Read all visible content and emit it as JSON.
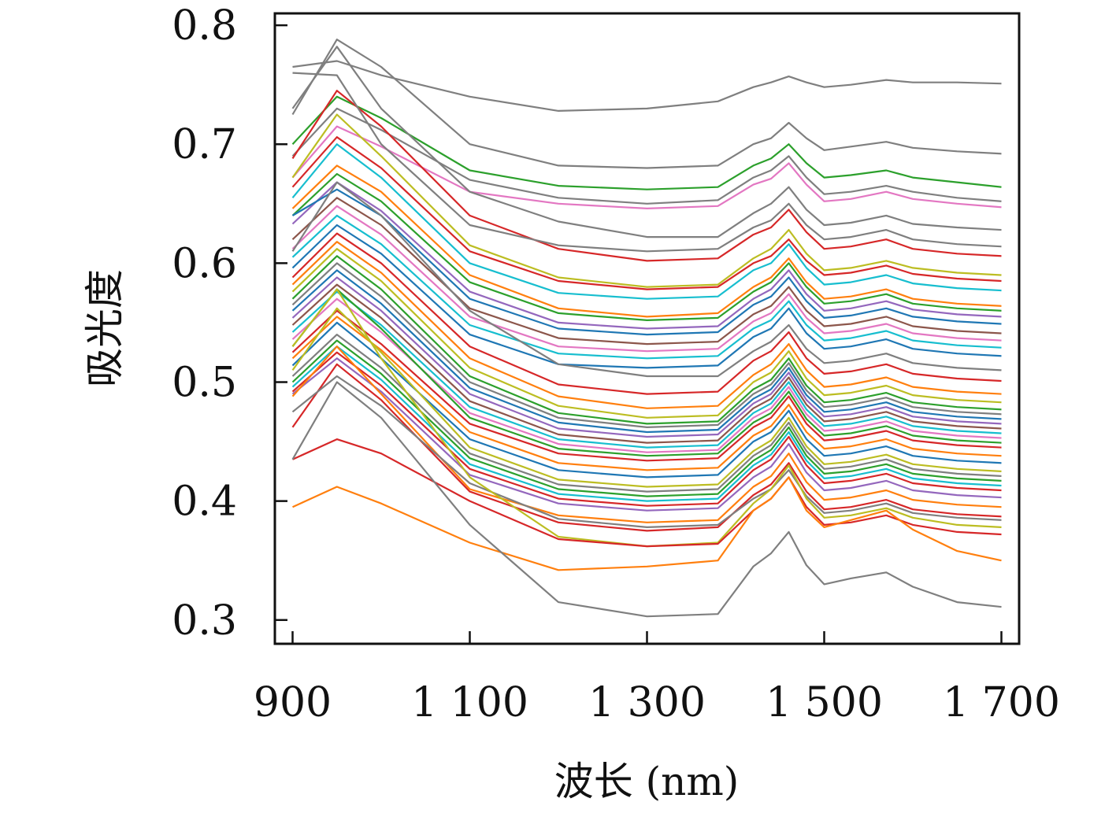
{
  "chart_data": {
    "type": "line",
    "title": "",
    "xlabel": "波长 (nm)",
    "ylabel": "吸光度",
    "xlim": [
      880,
      1720
    ],
    "ylim": [
      0.28,
      0.81
    ],
    "x_ticks": [
      900,
      1100,
      1300,
      1500,
      1700
    ],
    "x_tick_labels": [
      "900",
      "1 100",
      "1 300",
      "1 500",
      "1 700"
    ],
    "y_ticks": [
      0.3,
      0.4,
      0.5,
      0.6,
      0.7,
      0.8
    ],
    "y_tick_labels": [
      "0.3",
      "0.4",
      "0.5",
      "0.6",
      "0.7",
      "0.8"
    ],
    "grid": false,
    "legend": "none",
    "x": [
      900,
      950,
      1000,
      1100,
      1200,
      1300,
      1380,
      1420,
      1440,
      1460,
      1480,
      1500,
      1530,
      1570,
      1600,
      1650,
      1700
    ],
    "series": [
      {
        "color": "#7f7f7f",
        "values": [
          0.765,
          0.77,
          0.758,
          0.74,
          0.728,
          0.73,
          0.736,
          0.748,
          0.752,
          0.757,
          0.752,
          0.748,
          0.75,
          0.754,
          0.752,
          0.752,
          0.751
        ]
      },
      {
        "color": "#7f7f7f",
        "values": [
          0.725,
          0.788,
          0.765,
          0.7,
          0.682,
          0.68,
          0.682,
          0.7,
          0.705,
          0.718,
          0.705,
          0.695,
          0.698,
          0.702,
          0.697,
          0.694,
          0.692
        ]
      },
      {
        "color": "#2ca02c",
        "values": [
          0.7,
          0.74,
          0.722,
          0.678,
          0.665,
          0.662,
          0.664,
          0.682,
          0.688,
          0.7,
          0.684,
          0.672,
          0.674,
          0.678,
          0.672,
          0.668,
          0.664
        ]
      },
      {
        "color": "#7f7f7f",
        "values": [
          0.69,
          0.73,
          0.712,
          0.67,
          0.655,
          0.65,
          0.653,
          0.672,
          0.678,
          0.69,
          0.672,
          0.658,
          0.66,
          0.665,
          0.66,
          0.655,
          0.652
        ]
      },
      {
        "color": "#e377c2",
        "values": [
          0.672,
          0.715,
          0.698,
          0.66,
          0.65,
          0.646,
          0.648,
          0.666,
          0.671,
          0.684,
          0.666,
          0.652,
          0.654,
          0.66,
          0.654,
          0.65,
          0.647
        ]
      },
      {
        "color": "#7f7f7f",
        "values": [
          0.73,
          0.782,
          0.73,
          0.66,
          0.635,
          0.622,
          0.622,
          0.642,
          0.65,
          0.664,
          0.645,
          0.632,
          0.634,
          0.64,
          0.633,
          0.63,
          0.628
        ]
      },
      {
        "color": "#d62728",
        "values": [
          0.688,
          0.745,
          0.715,
          0.64,
          0.612,
          0.602,
          0.604,
          0.624,
          0.63,
          0.645,
          0.626,
          0.612,
          0.614,
          0.62,
          0.612,
          0.608,
          0.606
        ]
      },
      {
        "color": "#7f7f7f",
        "values": [
          0.76,
          0.758,
          0.7,
          0.632,
          0.615,
          0.61,
          0.612,
          0.63,
          0.636,
          0.65,
          0.632,
          0.62,
          0.622,
          0.628,
          0.62,
          0.616,
          0.614
        ]
      },
      {
        "color": "#bcbd22",
        "values": [
          0.672,
          0.725,
          0.69,
          0.615,
          0.588,
          0.58,
          0.582,
          0.604,
          0.612,
          0.628,
          0.608,
          0.594,
          0.596,
          0.602,
          0.596,
          0.592,
          0.59
        ]
      },
      {
        "color": "#d62728",
        "values": [
          0.664,
          0.706,
          0.68,
          0.61,
          0.585,
          0.578,
          0.58,
          0.6,
          0.606,
          0.62,
          0.602,
          0.59,
          0.592,
          0.598,
          0.591,
          0.587,
          0.585
        ]
      },
      {
        "color": "#17becf",
        "values": [
          0.655,
          0.7,
          0.672,
          0.6,
          0.575,
          0.57,
          0.572,
          0.594,
          0.6,
          0.616,
          0.596,
          0.582,
          0.584,
          0.59,
          0.583,
          0.579,
          0.577
        ]
      },
      {
        "color": "#ff7f0e",
        "values": [
          0.646,
          0.682,
          0.66,
          0.59,
          0.562,
          0.555,
          0.558,
          0.58,
          0.588,
          0.604,
          0.584,
          0.57,
          0.572,
          0.578,
          0.57,
          0.566,
          0.564
        ]
      },
      {
        "color": "#2ca02c",
        "values": [
          0.64,
          0.675,
          0.652,
          0.584,
          0.558,
          0.552,
          0.554,
          0.576,
          0.584,
          0.6,
          0.58,
          0.566,
          0.568,
          0.574,
          0.566,
          0.562,
          0.56
        ]
      },
      {
        "color": "#9467bd",
        "values": [
          0.633,
          0.668,
          0.644,
          0.576,
          0.55,
          0.545,
          0.547,
          0.57,
          0.578,
          0.594,
          0.574,
          0.56,
          0.562,
          0.568,
          0.561,
          0.557,
          0.555
        ]
      },
      {
        "color": "#1f77b4",
        "values": [
          0.64,
          0.662,
          0.64,
          0.57,
          0.545,
          0.54,
          0.542,
          0.565,
          0.572,
          0.588,
          0.568,
          0.554,
          0.556,
          0.562,
          0.555,
          0.551,
          0.549
        ]
      },
      {
        "color": "#8c564b",
        "values": [
          0.62,
          0.655,
          0.632,
          0.562,
          0.537,
          0.532,
          0.534,
          0.557,
          0.564,
          0.58,
          0.56,
          0.547,
          0.549,
          0.555,
          0.547,
          0.543,
          0.541
        ]
      },
      {
        "color": "#e377c2",
        "values": [
          0.612,
          0.648,
          0.624,
          0.555,
          0.53,
          0.526,
          0.528,
          0.551,
          0.558,
          0.574,
          0.554,
          0.541,
          0.543,
          0.549,
          0.541,
          0.537,
          0.535
        ]
      },
      {
        "color": "#17becf",
        "values": [
          0.605,
          0.64,
          0.616,
          0.548,
          0.524,
          0.52,
          0.522,
          0.545,
          0.552,
          0.568,
          0.548,
          0.535,
          0.537,
          0.543,
          0.535,
          0.531,
          0.529
        ]
      },
      {
        "color": "#1f77b4",
        "values": [
          0.596,
          0.632,
          0.608,
          0.54,
          0.515,
          0.512,
          0.514,
          0.538,
          0.545,
          0.562,
          0.541,
          0.528,
          0.53,
          0.536,
          0.528,
          0.524,
          0.522
        ]
      },
      {
        "color": "#7f7f7f",
        "values": [
          0.61,
          0.668,
          0.64,
          0.56,
          0.515,
          0.505,
          0.505,
          0.526,
          0.534,
          0.548,
          0.528,
          0.516,
          0.518,
          0.524,
          0.516,
          0.512,
          0.51
        ]
      },
      {
        "color": "#d62728",
        "values": [
          0.588,
          0.625,
          0.6,
          0.53,
          0.498,
          0.49,
          0.492,
          0.518,
          0.526,
          0.542,
          0.52,
          0.507,
          0.509,
          0.515,
          0.507,
          0.503,
          0.501
        ]
      },
      {
        "color": "#ff7f0e",
        "values": [
          0.582,
          0.618,
          0.592,
          0.52,
          0.488,
          0.478,
          0.48,
          0.506,
          0.515,
          0.532,
          0.51,
          0.496,
          0.498,
          0.504,
          0.496,
          0.492,
          0.49
        ]
      },
      {
        "color": "#bcbd22",
        "values": [
          0.576,
          0.612,
          0.585,
          0.512,
          0.48,
          0.47,
          0.472,
          0.5,
          0.508,
          0.526,
          0.503,
          0.489,
          0.491,
          0.497,
          0.489,
          0.485,
          0.483
        ]
      },
      {
        "color": "#2ca02c",
        "values": [
          0.57,
          0.606,
          0.578,
          0.505,
          0.474,
          0.465,
          0.467,
          0.494,
          0.502,
          0.52,
          0.497,
          0.483,
          0.485,
          0.491,
          0.483,
          0.479,
          0.477
        ]
      },
      {
        "color": "#7f7f7f",
        "values": [
          0.565,
          0.6,
          0.572,
          0.5,
          0.47,
          0.462,
          0.464,
          0.49,
          0.498,
          0.516,
          0.493,
          0.479,
          0.481,
          0.487,
          0.479,
          0.475,
          0.473
        ]
      },
      {
        "color": "#1f77b4",
        "values": [
          0.56,
          0.594,
          0.566,
          0.495,
          0.466,
          0.458,
          0.46,
          0.486,
          0.494,
          0.512,
          0.489,
          0.475,
          0.477,
          0.483,
          0.475,
          0.471,
          0.469
        ]
      },
      {
        "color": "#9467bd",
        "values": [
          0.554,
          0.588,
          0.56,
          0.49,
          0.461,
          0.454,
          0.456,
          0.482,
          0.49,
          0.508,
          0.485,
          0.471,
          0.473,
          0.479,
          0.471,
          0.467,
          0.465
        ]
      },
      {
        "color": "#8c564b",
        "values": [
          0.548,
          0.582,
          0.554,
          0.484,
          0.456,
          0.449,
          0.451,
          0.478,
          0.486,
          0.504,
          0.481,
          0.467,
          0.469,
          0.475,
          0.467,
          0.463,
          0.461
        ]
      },
      {
        "color": "#17becf",
        "values": [
          0.542,
          0.576,
          0.548,
          0.479,
          0.452,
          0.445,
          0.447,
          0.474,
          0.482,
          0.5,
          0.477,
          0.463,
          0.465,
          0.471,
          0.463,
          0.459,
          0.457
        ]
      },
      {
        "color": "#e377c2",
        "values": [
          0.536,
          0.57,
          0.542,
          0.474,
          0.448,
          0.441,
          0.443,
          0.47,
          0.478,
          0.496,
          0.473,
          0.459,
          0.461,
          0.467,
          0.459,
          0.455,
          0.453
        ]
      },
      {
        "color": "#2ca02c",
        "values": [
          0.53,
          0.578,
          0.545,
          0.47,
          0.444,
          0.438,
          0.44,
          0.466,
          0.474,
          0.492,
          0.469,
          0.455,
          0.457,
          0.463,
          0.455,
          0.451,
          0.449
        ]
      },
      {
        "color": "#d62728",
        "values": [
          0.525,
          0.56,
          0.532,
          0.465,
          0.44,
          0.434,
          0.436,
          0.462,
          0.47,
          0.488,
          0.465,
          0.451,
          0.453,
          0.459,
          0.451,
          0.447,
          0.445
        ]
      },
      {
        "color": "#ff7f0e",
        "values": [
          0.52,
          0.555,
          0.527,
          0.458,
          0.432,
          0.426,
          0.428,
          0.455,
          0.463,
          0.481,
          0.458,
          0.444,
          0.446,
          0.452,
          0.444,
          0.44,
          0.438
        ]
      },
      {
        "color": "#1f77b4",
        "values": [
          0.514,
          0.55,
          0.52,
          0.452,
          0.426,
          0.42,
          0.422,
          0.45,
          0.458,
          0.476,
          0.452,
          0.438,
          0.44,
          0.446,
          0.438,
          0.434,
          0.432
        ]
      },
      {
        "color": "#bcbd22",
        "values": [
          0.51,
          0.562,
          0.525,
          0.445,
          0.418,
          0.412,
          0.414,
          0.442,
          0.451,
          0.47,
          0.446,
          0.431,
          0.433,
          0.439,
          0.431,
          0.427,
          0.425
        ]
      },
      {
        "color": "#7f7f7f",
        "values": [
          0.505,
          0.54,
          0.512,
          0.44,
          0.414,
          0.408,
          0.41,
          0.438,
          0.447,
          0.466,
          0.442,
          0.427,
          0.429,
          0.435,
          0.427,
          0.423,
          0.421
        ]
      },
      {
        "color": "#2ca02c",
        "values": [
          0.5,
          0.535,
          0.507,
          0.436,
          0.41,
          0.404,
          0.406,
          0.434,
          0.443,
          0.462,
          0.438,
          0.423,
          0.425,
          0.431,
          0.423,
          0.419,
          0.417
        ]
      },
      {
        "color": "#17becf",
        "values": [
          0.496,
          0.53,
          0.502,
          0.431,
          0.406,
          0.4,
          0.402,
          0.43,
          0.439,
          0.458,
          0.434,
          0.419,
          0.421,
          0.427,
          0.419,
          0.415,
          0.413
        ]
      },
      {
        "color": "#d62728",
        "values": [
          0.492,
          0.525,
          0.497,
          0.427,
          0.402,
          0.396,
          0.398,
          0.426,
          0.435,
          0.454,
          0.43,
          0.415,
          0.417,
          0.423,
          0.415,
          0.411,
          0.409
        ]
      },
      {
        "color": "#9467bd",
        "values": [
          0.49,
          0.52,
          0.492,
          0.422,
          0.398,
          0.392,
          0.394,
          0.42,
          0.429,
          0.448,
          0.424,
          0.409,
          0.411,
          0.417,
          0.409,
          0.405,
          0.403
        ]
      },
      {
        "color": "#ff7f0e",
        "values": [
          0.488,
          0.53,
          0.49,
          0.41,
          0.388,
          0.382,
          0.384,
          0.412,
          0.421,
          0.44,
          0.416,
          0.401,
          0.403,
          0.409,
          0.401,
          0.397,
          0.395
        ]
      },
      {
        "color": "#d62728",
        "values": [
          0.462,
          0.515,
          0.485,
          0.408,
          0.382,
          0.375,
          0.378,
          0.405,
          0.414,
          0.432,
          0.408,
          0.393,
          0.395,
          0.401,
          0.393,
          0.389,
          0.387
        ]
      },
      {
        "color": "#7f7f7f",
        "values": [
          0.475,
          0.505,
          0.48,
          0.415,
          0.385,
          0.378,
          0.38,
          0.402,
          0.41,
          0.426,
          0.404,
          0.39,
          0.392,
          0.398,
          0.39,
          0.386,
          0.384
        ]
      },
      {
        "color": "#bcbd22",
        "values": [
          0.53,
          0.578,
          0.52,
          0.42,
          0.37,
          0.362,
          0.365,
          0.398,
          0.41,
          0.43,
          0.402,
          0.386,
          0.388,
          0.394,
          0.386,
          0.38,
          0.378
        ]
      },
      {
        "color": "#d62728",
        "values": [
          0.435,
          0.452,
          0.44,
          0.4,
          0.368,
          0.362,
          0.364,
          0.392,
          0.402,
          0.42,
          0.395,
          0.38,
          0.382,
          0.388,
          0.38,
          0.374,
          0.372
        ]
      },
      {
        "color": "#ff7f0e",
        "values": [
          0.395,
          0.412,
          0.398,
          0.365,
          0.342,
          0.345,
          0.35,
          0.392,
          0.402,
          0.42,
          0.392,
          0.378,
          0.384,
          0.392,
          0.376,
          0.358,
          0.35
        ]
      },
      {
        "color": "#7f7f7f",
        "values": [
          0.435,
          0.5,
          0.47,
          0.38,
          0.315,
          0.303,
          0.305,
          0.345,
          0.356,
          0.374,
          0.346,
          0.33,
          0.335,
          0.34,
          0.328,
          0.315,
          0.311
        ]
      }
    ]
  }
}
